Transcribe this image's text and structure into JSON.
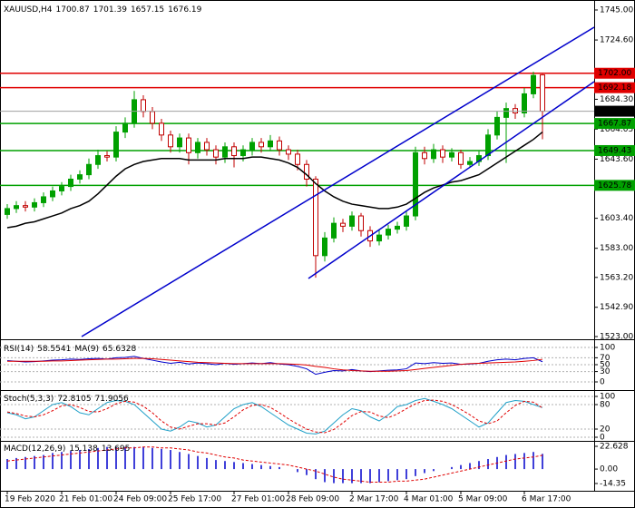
{
  "chart_data": [
    {
      "type": "candlestick",
      "title": "XAUUSD,H4",
      "categories": [
        "19 Feb 2020",
        null,
        null,
        null,
        null,
        null,
        "21 Feb 01:00",
        null,
        null,
        null,
        null,
        null,
        "24 Feb 09:00",
        null,
        null,
        null,
        null,
        null,
        "25 Feb 17:00",
        null,
        null,
        null,
        null,
        null,
        null,
        "27 Feb 01:00",
        null,
        null,
        null,
        null,
        null,
        "28 Feb 09:00",
        null,
        null,
        null,
        null,
        null,
        null,
        "2 Mar 17:00",
        null,
        null,
        null,
        null,
        null,
        "4 Mar 01:00",
        null,
        null,
        null,
        null,
        null,
        "5 Mar 09:00",
        null,
        null,
        null,
        null,
        null,
        null,
        "6 Mar 17:00",
        null,
        null
      ],
      "open": [
        1606,
        1610,
        1612,
        1611,
        1614,
        1618,
        1622,
        1625,
        1630,
        1633,
        1640,
        1646,
        1645,
        1662,
        1668,
        1684,
        1676,
        1668,
        1660,
        1652,
        1658,
        1648,
        1655,
        1650,
        1645,
        1652,
        1646,
        1650,
        1655,
        1652,
        1656,
        1650,
        1647,
        1640,
        1630,
        1578,
        1590,
        1600,
        1598,
        1605,
        1595,
        1588,
        1592,
        1596,
        1598,
        1605,
        1648,
        1644,
        1650,
        1645,
        1648,
        1640,
        1642,
        1646,
        1660,
        1672,
        1678,
        1675,
        1688,
        1700.87
      ],
      "high": [
        1613,
        1615,
        1615,
        1617,
        1621,
        1625,
        1628,
        1633,
        1636,
        1644,
        1650,
        1649,
        1666,
        1672,
        1690,
        1687,
        1679,
        1671,
        1663,
        1661,
        1661,
        1658,
        1658,
        1653,
        1655,
        1655,
        1653,
        1658,
        1658,
        1660,
        1659,
        1653,
        1650,
        1643,
        1632,
        1594,
        1604,
        1603,
        1608,
        1607,
        1598,
        1596,
        1599,
        1601,
        1608,
        1652,
        1652,
        1654,
        1653,
        1651,
        1650,
        1645,
        1649,
        1664,
        1676,
        1682,
        1681,
        1692,
        1703,
        1701.39
      ],
      "low": [
        1603,
        1607,
        1608,
        1608,
        1611,
        1615,
        1619,
        1622,
        1627,
        1630,
        1637,
        1642,
        1642,
        1658,
        1665,
        1672,
        1664,
        1656,
        1648,
        1648,
        1640,
        1644,
        1646,
        1640,
        1641,
        1638,
        1642,
        1646,
        1648,
        1649,
        1646,
        1643,
        1636,
        1625,
        1563,
        1574,
        1587,
        1594,
        1595,
        1591,
        1584,
        1585,
        1589,
        1593,
        1595,
        1602,
        1640,
        1641,
        1641,
        1642,
        1637,
        1638,
        1639,
        1643,
        1657,
        1641,
        1671,
        1672,
        1685,
        1657.15
      ],
      "close": [
        1610,
        1612,
        1611,
        1614,
        1618,
        1622,
        1625,
        1630,
        1633,
        1640,
        1646,
        1645,
        1662,
        1668,
        1684,
        1676,
        1668,
        1660,
        1652,
        1658,
        1648,
        1655,
        1650,
        1645,
        1652,
        1646,
        1650,
        1655,
        1652,
        1656,
        1650,
        1647,
        1640,
        1630,
        1578,
        1590,
        1600,
        1598,
        1605,
        1595,
        1588,
        1592,
        1596,
        1598,
        1605,
        1648,
        1644,
        1650,
        1645,
        1648,
        1640,
        1642,
        1646,
        1660,
        1672,
        1678,
        1675,
        1688,
        1700.5,
        1676.19
      ],
      "up_color": "#00a000",
      "down_color": "#c00000",
      "ma": {
        "color": "#000000",
        "values": [
          1597,
          1598,
          1600,
          1601,
          1603,
          1605,
          1607,
          1610,
          1612,
          1615,
          1620,
          1626,
          1632,
          1637,
          1640,
          1642,
          1643,
          1644,
          1644,
          1644,
          1643,
          1643,
          1643,
          1643,
          1644,
          1644,
          1644,
          1645,
          1645,
          1644,
          1643,
          1641,
          1638,
          1633,
          1627,
          1622,
          1618,
          1615,
          1613,
          1612,
          1611,
          1610,
          1610,
          1611,
          1613,
          1617,
          1621,
          1624,
          1626,
          1628,
          1629,
          1631,
          1633,
          1637,
          1641,
          1645,
          1649,
          1653,
          1657,
          1662
        ]
      },
      "levels": [
        {
          "value": 1702,
          "label": "1702.00",
          "color": "#e00000"
        },
        {
          "value": 1692.18,
          "color": "#e00000"
        },
        {
          "value": 1667.87,
          "color": "#00a000"
        },
        {
          "value": 1649.43,
          "color": "#00a000"
        },
        {
          "value": 1625.78,
          "color": "#00a000"
        }
      ],
      "ylim": [
        1523,
        1745
      ],
      "yticks": [
        {
          "value": 1745,
          "label": "1745.00"
        },
        {
          "value": 1724.6,
          "label": "1724.60"
        },
        {
          "value": 1684.3,
          "label": "1684.30"
        },
        1664.05,
        {
          "value": 1643.6,
          "label": "1643.60"
        },
        {
          "value": 1603.4,
          "label": "1603.40"
        },
        {
          "value": 1583,
          "label": "1583.00"
        },
        {
          "value": 1563.2,
          "label": "1563.20"
        },
        {
          "value": 1542.9,
          "label": "1542.90"
        },
        {
          "value": 1523,
          "label": "1523.00"
        }
      ]
    },
    {
      "type": "line",
      "title": "RSI(14)",
      "ylim": [
        0,
        100
      ],
      "yticks": [
        100,
        70,
        50,
        30,
        0
      ],
      "series": [
        {
          "name": "RSI(14)",
          "color": "#0000cc",
          "values": [
            62,
            60,
            58,
            59,
            61,
            63,
            64,
            66,
            65,
            67,
            68,
            66,
            70,
            71,
            74,
            68,
            63,
            58,
            54,
            57,
            52,
            55,
            53,
            50,
            54,
            51,
            53,
            55,
            53,
            56,
            52,
            50,
            45,
            38,
            22,
            28,
            33,
            32,
            36,
            32,
            30,
            32,
            34,
            35,
            38,
            55,
            53,
            56,
            54,
            55,
            51,
            52,
            54,
            60,
            64,
            66,
            64,
            68,
            70,
            58.5541
          ]
        },
        {
          "name": "MA(9)",
          "color": "#e00000",
          "values": [
            60,
            60,
            60,
            60,
            60,
            61,
            61,
            62,
            63,
            64,
            65,
            66,
            66,
            67,
            68,
            68,
            67,
            65,
            63,
            61,
            59,
            57,
            56,
            55,
            54,
            53,
            53,
            53,
            53,
            53,
            53,
            52,
            51,
            49,
            45,
            42,
            38,
            35,
            33,
            32,
            31,
            31,
            31,
            32,
            33,
            36,
            39,
            42,
            45,
            48,
            51,
            53,
            54,
            55,
            56,
            57,
            58,
            60,
            62,
            65.6328
          ]
        }
      ]
    },
    {
      "type": "line",
      "title": "Stoch(5,3,3)",
      "ylim": [
        0,
        100
      ],
      "yticks": [
        100,
        80,
        20,
        0
      ],
      "series": [
        {
          "color": "#20a0c8",
          "values": [
            60,
            55,
            45,
            50,
            65,
            80,
            85,
            75,
            60,
            55,
            70,
            85,
            90,
            88,
            80,
            60,
            40,
            20,
            15,
            25,
            40,
            35,
            25,
            30,
            50,
            70,
            80,
            85,
            75,
            60,
            45,
            30,
            20,
            10,
            8,
            15,
            35,
            55,
            70,
            65,
            50,
            40,
            55,
            75,
            80,
            90,
            95,
            88,
            80,
            70,
            55,
            40,
            25,
            35,
            60,
            85,
            90,
            88,
            80,
            72.8105
          ]
        },
        {
          "color": "#e00000",
          "dashed": true,
          "values": [
            62,
            58,
            52,
            50,
            55,
            65,
            77,
            80,
            73,
            63,
            62,
            70,
            82,
            88,
            86,
            76,
            60,
            40,
            25,
            20,
            27,
            33,
            33,
            30,
            35,
            50,
            67,
            78,
            80,
            73,
            60,
            45,
            32,
            20,
            13,
            11,
            19,
            35,
            53,
            63,
            62,
            52,
            48,
            57,
            70,
            82,
            90,
            91,
            88,
            80,
            68,
            55,
            40,
            33,
            40,
            60,
            78,
            88,
            86,
            71.9056
          ]
        }
      ]
    },
    {
      "type": "macd",
      "title": "MACD(12,26,9)",
      "ylim": [
        -14.35,
        22.628
      ],
      "yticks": [
        22.628,
        {
          "value": 0,
          "label": "0.00"
        },
        -14.35
      ],
      "series": [
        {
          "color": "#0000cc",
          "values": [
            10,
            11,
            12,
            13,
            14,
            16,
            17,
            18,
            19,
            20,
            21,
            22,
            22,
            22,
            22,
            22,
            21,
            20,
            19,
            17,
            15,
            13,
            11,
            9,
            8,
            7,
            6,
            5,
            4,
            3,
            2,
            0,
            -3,
            -6,
            -10,
            -13,
            -14,
            -14,
            -14,
            -14,
            -14,
            -13,
            -12,
            -11,
            -10,
            -7,
            -4,
            -2,
            0,
            2,
            4,
            6,
            8,
            10,
            12,
            14,
            15,
            16,
            17,
            15.138
          ]
        },
        {
          "color": "#e00000",
          "dashed": true,
          "values": [
            8,
            9,
            10,
            11,
            12,
            13,
            14,
            15,
            16,
            17,
            18,
            19,
            20,
            21,
            21,
            22,
            22,
            21,
            21,
            20,
            19,
            17,
            16,
            14,
            12,
            11,
            9,
            8,
            7,
            6,
            5,
            4,
            2,
            0,
            -2,
            -5,
            -8,
            -10,
            -11,
            -12,
            -13,
            -13,
            -13,
            -12,
            -12,
            -11,
            -10,
            -8,
            -6,
            -4,
            -2,
            0,
            2,
            4,
            6,
            8,
            10,
            11,
            12,
            13.695
          ]
        }
      ]
    }
  ]
}
